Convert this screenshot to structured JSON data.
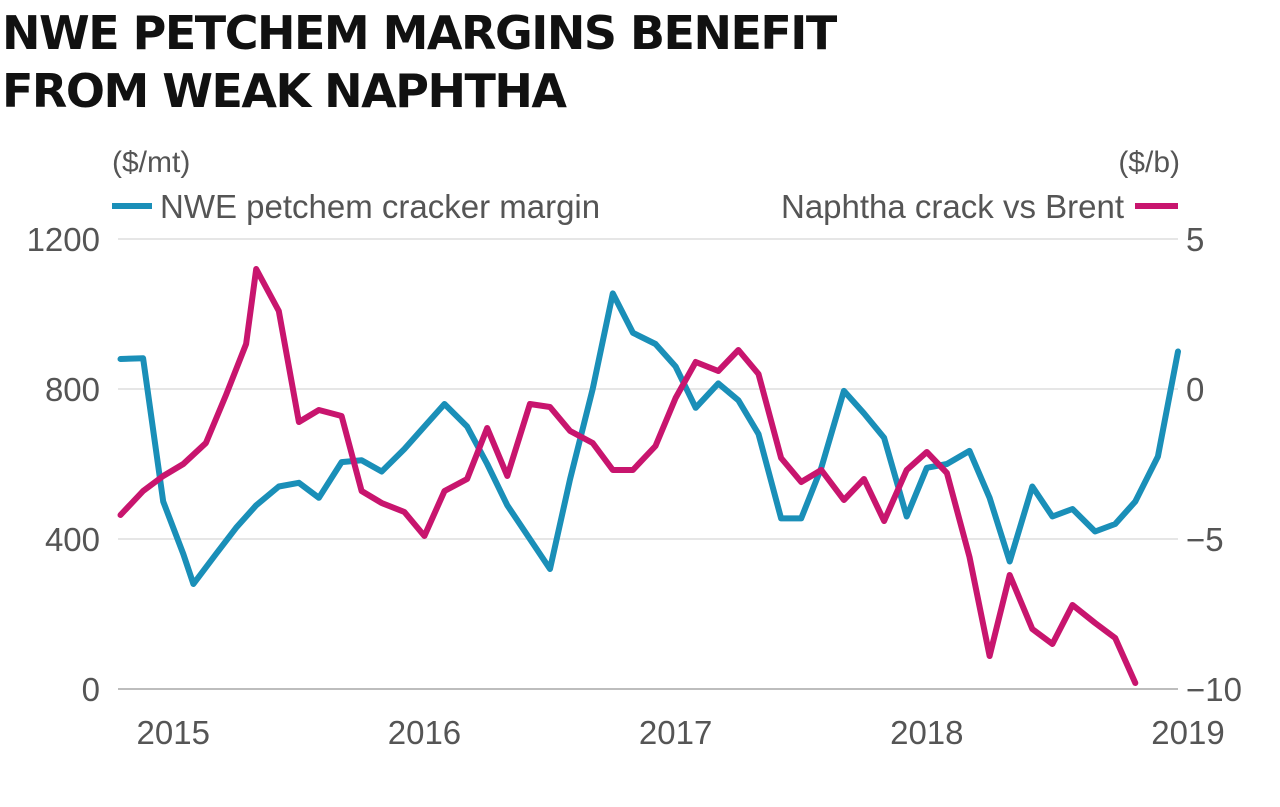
{
  "title_lines": [
    "NWE PETCHEM MARGINS BENEFIT",
    "FROM WEAK NAPHTHA"
  ],
  "chart_data": {
    "type": "line",
    "left_axis": {
      "unit": "($/mt)",
      "ticks": [
        0,
        400,
        800,
        1200
      ],
      "range": [
        0,
        1200
      ]
    },
    "right_axis": {
      "unit": "($/b)",
      "ticks": [
        -10,
        -5,
        0,
        5
      ],
      "range": [
        -10,
        5
      ]
    },
    "x_axis": {
      "range": [
        2014.78,
        2019.0
      ],
      "ticks": [
        2015,
        2016,
        2017,
        2018,
        2019
      ],
      "tick_labels": [
        "2015",
        "2016",
        "2017",
        "2018",
        "2019"
      ]
    },
    "grid": true,
    "legend_placement": "top",
    "series": [
      {
        "name": "NWE petchem cracker margin",
        "axis": "left",
        "color": "#1a8fb8",
        "points": [
          [
            2014.79,
            880
          ],
          [
            2014.88,
            882
          ],
          [
            2014.96,
            500
          ],
          [
            2015.04,
            360
          ],
          [
            2015.08,
            280
          ],
          [
            2015.17,
            360
          ],
          [
            2015.25,
            430
          ],
          [
            2015.33,
            490
          ],
          [
            2015.42,
            540
          ],
          [
            2015.5,
            550
          ],
          [
            2015.58,
            510
          ],
          [
            2015.67,
            605
          ],
          [
            2015.75,
            610
          ],
          [
            2015.83,
            580
          ],
          [
            2015.92,
            640
          ],
          [
            2016.0,
            700
          ],
          [
            2016.08,
            760
          ],
          [
            2016.17,
            700
          ],
          [
            2016.25,
            600
          ],
          [
            2016.33,
            490
          ],
          [
            2016.42,
            400
          ],
          [
            2016.5,
            320
          ],
          [
            2016.58,
            560
          ],
          [
            2016.67,
            800
          ],
          [
            2016.75,
            1055
          ],
          [
            2016.83,
            950
          ],
          [
            2016.92,
            920
          ],
          [
            2017.0,
            860
          ],
          [
            2017.08,
            750
          ],
          [
            2017.17,
            815
          ],
          [
            2017.25,
            770
          ],
          [
            2017.33,
            680
          ],
          [
            2017.42,
            455
          ],
          [
            2017.5,
            455
          ],
          [
            2017.58,
            590
          ],
          [
            2017.67,
            795
          ],
          [
            2017.75,
            735
          ],
          [
            2017.83,
            670
          ],
          [
            2017.92,
            460
          ],
          [
            2018.0,
            590
          ],
          [
            2018.08,
            600
          ],
          [
            2018.17,
            635
          ],
          [
            2018.25,
            510
          ],
          [
            2018.33,
            340
          ],
          [
            2018.42,
            540
          ],
          [
            2018.5,
            460
          ],
          [
            2018.58,
            480
          ],
          [
            2018.67,
            420
          ],
          [
            2018.75,
            440
          ],
          [
            2018.83,
            500
          ],
          [
            2018.92,
            620
          ],
          [
            2019.0,
            900
          ]
        ]
      },
      {
        "name": "Naphtha crack vs Brent",
        "axis": "right",
        "color": "#c8156e",
        "points": [
          [
            2014.79,
            -4.2
          ],
          [
            2014.88,
            -3.4
          ],
          [
            2014.96,
            -2.9
          ],
          [
            2015.04,
            -2.5
          ],
          [
            2015.13,
            -1.8
          ],
          [
            2015.21,
            -0.2
          ],
          [
            2015.29,
            1.5
          ],
          [
            2015.33,
            4.0
          ],
          [
            2015.42,
            2.6
          ],
          [
            2015.5,
            -1.1
          ],
          [
            2015.58,
            -0.7
          ],
          [
            2015.67,
            -0.9
          ],
          [
            2015.75,
            -3.4
          ],
          [
            2015.83,
            -3.8
          ],
          [
            2015.92,
            -4.1
          ],
          [
            2016.0,
            -4.9
          ],
          [
            2016.08,
            -3.4
          ],
          [
            2016.17,
            -3.0
          ],
          [
            2016.25,
            -1.3
          ],
          [
            2016.33,
            -2.9
          ],
          [
            2016.42,
            -0.5
          ],
          [
            2016.5,
            -0.6
          ],
          [
            2016.58,
            -1.4
          ],
          [
            2016.67,
            -1.8
          ],
          [
            2016.75,
            -2.7
          ],
          [
            2016.83,
            -2.7
          ],
          [
            2016.92,
            -1.9
          ],
          [
            2017.0,
            -0.3
          ],
          [
            2017.08,
            0.9
          ],
          [
            2017.17,
            0.6
          ],
          [
            2017.25,
            1.3
          ],
          [
            2017.33,
            0.5
          ],
          [
            2017.42,
            -2.3
          ],
          [
            2017.5,
            -3.1
          ],
          [
            2017.58,
            -2.7
          ],
          [
            2017.67,
            -3.7
          ],
          [
            2017.75,
            -3.0
          ],
          [
            2017.83,
            -4.4
          ],
          [
            2017.92,
            -2.7
          ],
          [
            2018.0,
            -2.1
          ],
          [
            2018.08,
            -2.8
          ],
          [
            2018.17,
            -5.6
          ],
          [
            2018.25,
            -8.9
          ],
          [
            2018.33,
            -6.2
          ],
          [
            2018.42,
            -8.0
          ],
          [
            2018.5,
            -8.5
          ],
          [
            2018.58,
            -7.2
          ],
          [
            2018.67,
            -7.8
          ],
          [
            2018.75,
            -8.3
          ],
          [
            2018.83,
            -9.8
          ]
        ]
      }
    ]
  }
}
